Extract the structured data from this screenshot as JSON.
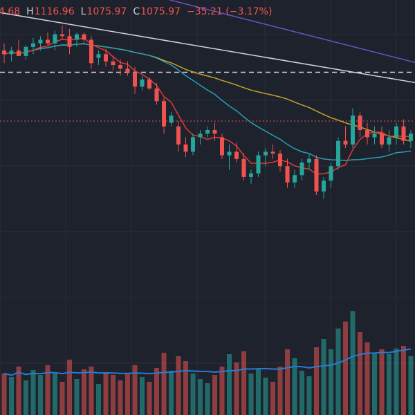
{
  "header": {
    "open_value": "4.68",
    "high_label": "H",
    "high_value": "1116.96",
    "low_label": "L",
    "low_value": "1075.97",
    "close_label": "C",
    "close_value": "1075.97",
    "change": "−35.21 (−3.17%)"
  },
  "colors": {
    "background": "#1e222d",
    "grid": "#2a2e39",
    "up": "#26a69a",
    "down": "#ef5350",
    "ma_fast": "#e53935",
    "ma_mid": "#26a0b4",
    "ma_slow": "#c9a227",
    "ma_long": "#6a4fc4",
    "trendline": "#d1d4dc",
    "hline_dashed": "#d1d4dc",
    "hline_dotted": "#ef5350",
    "volume_ma": "#2a7bd6"
  },
  "chart_data": {
    "type": "candlestick",
    "ylim": [
      1000,
      1180
    ],
    "volume_max": 160,
    "hlines": [
      {
        "price": 1140,
        "style": "dashed"
      },
      {
        "price": 1113,
        "style": "dotted"
      }
    ],
    "trendlines": [
      {
        "from": [
          -2,
          1174
        ],
        "to": [
          57,
          1134
        ]
      },
      {
        "from": [
          17,
          1186
        ],
        "to": [
          57,
          1145
        ]
      }
    ],
    "candles": [
      [
        1152,
        1156,
        1145,
        1150,
        60
      ],
      [
        1150,
        1154,
        1146,
        1152,
        55
      ],
      [
        1152,
        1158,
        1149,
        1149,
        70
      ],
      [
        1149,
        1155,
        1147,
        1154,
        50
      ],
      [
        1154,
        1159,
        1150,
        1156,
        65
      ],
      [
        1156,
        1160,
        1152,
        1158,
        58
      ],
      [
        1158,
        1162,
        1155,
        1156,
        72
      ],
      [
        1156,
        1163,
        1152,
        1161,
        60
      ],
      [
        1161,
        1166,
        1158,
        1160,
        48
      ],
      [
        1160,
        1164,
        1150,
        1154,
        80
      ],
      [
        1158,
        1162,
        1154,
        1161,
        52
      ],
      [
        1161,
        1162,
        1156,
        1158,
        66
      ],
      [
        1158,
        1160,
        1142,
        1145,
        70
      ],
      [
        1148,
        1152,
        1144,
        1150,
        45
      ],
      [
        1150,
        1153,
        1143,
        1146,
        62
      ],
      [
        1146,
        1149,
        1141,
        1144,
        58
      ],
      [
        1144,
        1147,
        1138,
        1142,
        50
      ],
      [
        1142,
        1146,
        1138,
        1140,
        60
      ],
      [
        1140,
        1143,
        1128,
        1132,
        72
      ],
      [
        1132,
        1138,
        1130,
        1136,
        55
      ],
      [
        1136,
        1137,
        1130,
        1131,
        48
      ],
      [
        1131,
        1134,
        1122,
        1124,
        68
      ],
      [
        1124,
        1126,
        1106,
        1110,
        90
      ],
      [
        1112,
        1118,
        1110,
        1116,
        64
      ],
      [
        1110,
        1113,
        1096,
        1100,
        85
      ],
      [
        1100,
        1104,
        1093,
        1096,
        78
      ],
      [
        1096,
        1106,
        1094,
        1104,
        60
      ],
      [
        1104,
        1108,
        1100,
        1106,
        52
      ],
      [
        1106,
        1110,
        1104,
        1108,
        46
      ],
      [
        1108,
        1112,
        1102,
        1106,
        58
      ],
      [
        1104,
        1106,
        1092,
        1094,
        70
      ],
      [
        1094,
        1100,
        1086,
        1096,
        88
      ],
      [
        1096,
        1101,
        1090,
        1092,
        76
      ],
      [
        1092,
        1095,
        1080,
        1082,
        92
      ],
      [
        1082,
        1086,
        1078,
        1084,
        60
      ],
      [
        1084,
        1096,
        1082,
        1094,
        66
      ],
      [
        1094,
        1098,
        1088,
        1096,
        54
      ],
      [
        1096,
        1100,
        1092,
        1095,
        48
      ],
      [
        1095,
        1097,
        1085,
        1088,
        70
      ],
      [
        1088,
        1092,
        1076,
        1079,
        95
      ],
      [
        1079,
        1086,
        1076,
        1083,
        82
      ],
      [
        1083,
        1092,
        1080,
        1090,
        64
      ],
      [
        1090,
        1095,
        1086,
        1092,
        56
      ],
      [
        1092,
        1094,
        1072,
        1074,
        98
      ],
      [
        1074,
        1082,
        1070,
        1080,
        110
      ],
      [
        1080,
        1090,
        1076,
        1088,
        95
      ],
      [
        1088,
        1104,
        1086,
        1102,
        125
      ],
      [
        1102,
        1110,
        1098,
        1100,
        135
      ],
      [
        1100,
        1120,
        1098,
        1116,
        150
      ],
      [
        1116,
        1118,
        1104,
        1108,
        120
      ],
      [
        1108,
        1112,
        1100,
        1104,
        105
      ],
      [
        1104,
        1110,
        1100,
        1106,
        90
      ],
      [
        1106,
        1110,
        1098,
        1100,
        95
      ],
      [
        1100,
        1108,
        1096,
        1104,
        88
      ],
      [
        1104,
        1112,
        1100,
        1110,
        96
      ],
      [
        1110,
        1114,
        1100,
        1102,
        100
      ],
      [
        1102,
        1108,
        1098,
        1106,
        85
      ]
    ]
  }
}
